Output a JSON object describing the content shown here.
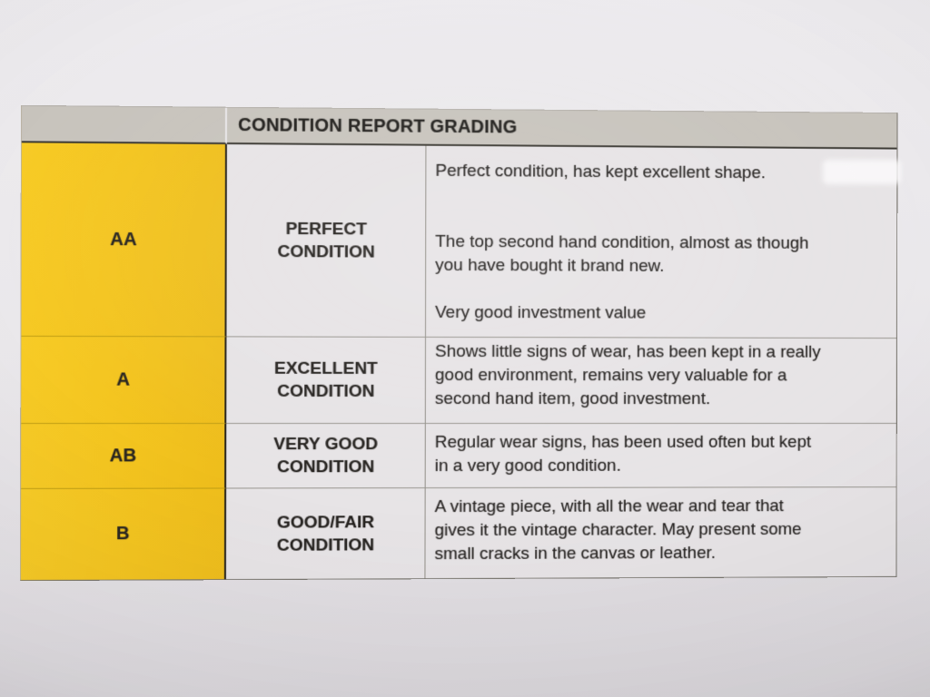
{
  "table": {
    "title": "CONDITION REPORT GRADING",
    "rows": [
      {
        "grade": "AA",
        "condition": "PERFECT\nCONDITION",
        "desc1": "Perfect condition, has kept excellent shape.",
        "desc2": "The top second hand condition, almost as though\nyou have bought it brand new.",
        "desc3": "Very good investment value"
      },
      {
        "grade": "A",
        "condition": "EXCELLENT\nCONDITION",
        "desc1": "Shows little signs of wear, has been kept in a really\ngood environment, remains very valuable for a\nsecond hand item, good investment."
      },
      {
        "grade": "AB",
        "condition": "VERY GOOD\nCONDITION",
        "desc1": "Regular wear signs, has been used often but kept\nin a very good condition."
      },
      {
        "grade": "B",
        "condition": "GOOD/FAIR\nCONDITION",
        "desc1": "A vintage piece, with all the wear and tear that\ngives it the vintage character. May present some\nsmall cracks in the canvas or leather."
      }
    ],
    "colors": {
      "grade_column_yellow": "#f3c41f",
      "header_gray": "#c8c4bd",
      "paper": "#e9e7ea",
      "cell_background": "#e7e4e6",
      "text": "#2b2823"
    }
  }
}
